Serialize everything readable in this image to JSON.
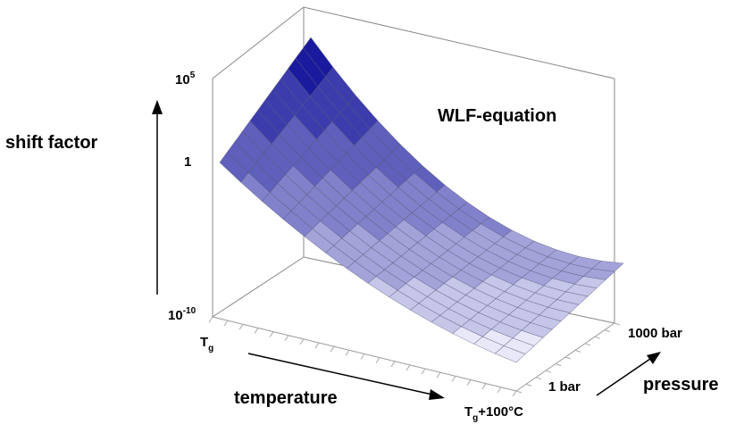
{
  "chart_data": {
    "type": "surface",
    "title": "WLF-equation",
    "zlabel": "shift factor",
    "xlabel": "temperature",
    "ylabel": "pressure",
    "z_scale": "log",
    "zlim": [
      "10-10",
      "105"
    ],
    "z_ticks": [
      {
        "base": "10",
        "exp": "5"
      },
      {
        "base": "1",
        "exp": ""
      },
      {
        "base": "10",
        "exp": "-10"
      }
    ],
    "x_ticks": [
      {
        "main": "T",
        "sub": "g",
        "rest": ""
      },
      {
        "main": "T",
        "sub": "g",
        "rest": "+100°C"
      }
    ],
    "y_ticks": [
      "1 bar",
      "1000 bar"
    ],
    "colors": {
      "surface_high": "#1a1a9e",
      "surface_low": "#e6e6f7",
      "mesh": "#555577"
    }
  }
}
